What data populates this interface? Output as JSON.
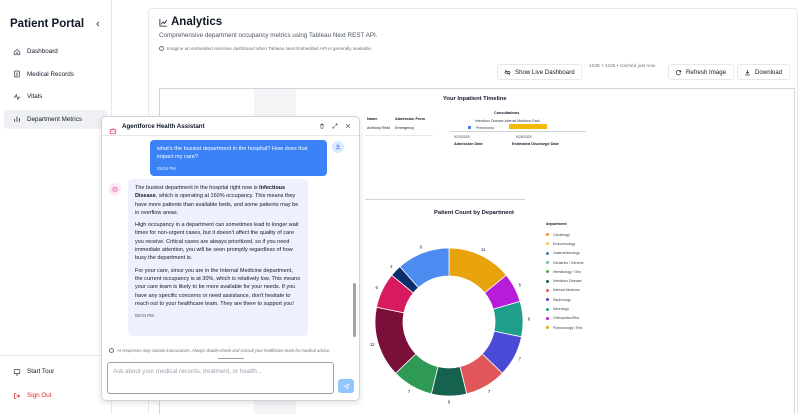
{
  "sidebar": {
    "title": "Patient Portal",
    "collapse_icon": "chevron-left-icon",
    "items": [
      {
        "label": "Dashboard",
        "icon": "home-icon"
      },
      {
        "label": "Medical Records",
        "icon": "document-icon"
      },
      {
        "label": "Vitals",
        "icon": "activity-icon"
      },
      {
        "label": "Department Metrics",
        "icon": "bar-chart-icon",
        "active": true
      }
    ],
    "footer": {
      "start_tour": "Start Tour",
      "sign_out": "Sign Out"
    }
  },
  "analytics": {
    "title": "Analytics",
    "subtitle": "Comprehensive department occupancy metrics using Tableau Next REST API.",
    "note": "Imagine an embedded real-time dashboard when Tableau Next Embedded API is generally available.",
    "show_live_label": "Show Live Dashboard",
    "image_meta": "1248 × 1105 • Cached just now",
    "refresh_label": "Refresh Image",
    "download_label": "Download"
  },
  "timeline": {
    "title": "Your Inpatient Timeline",
    "col_name": "Name",
    "col_admission_from": "Admission From",
    "name": "Anthony Reid",
    "admission_from": "Emergency",
    "consultations_label": "Consultations",
    "consult_dept": "Infectious Disease,Internal Medicine,Radi..",
    "event_label": "Pneumonia",
    "date_start": "9/23/2025",
    "date_end": "9/26/2025",
    "admission_date_label": "Admission Date",
    "discharge_label": "Estimated Discharge Date"
  },
  "chart_data": {
    "type": "pie",
    "title": "Patient Count by Department",
    "legend_title": "department",
    "categories": [
      "Cardiology",
      "Endocrinology",
      "Gastroenterology",
      "Geriatrics / General",
      "Hematology / Onc",
      "Infectious Disease",
      "Internal Medicine",
      "Nephrology",
      "Neurology",
      "Orthopedics/Rhe",
      "Pulmonology / Res"
    ],
    "colors": [
      "#f28e2b",
      "#edc948",
      "#4e79a7",
      "#76b7b2",
      "#59a14f",
      "#17614f",
      "#e15759",
      "#4b4ad6",
      "#1f9e89",
      "#b71cdb",
      "#e8a20c"
    ],
    "slices": [
      {
        "label": "11",
        "value": 11,
        "color": "#e8a20c"
      },
      {
        "label": "5",
        "value": 5,
        "color": "#b71cdb"
      },
      {
        "label": "6",
        "value": 6,
        "color": "#1f9e89"
      },
      {
        "label": "7",
        "value": 7,
        "color": "#4b4ad6"
      },
      {
        "label": "7",
        "value": 7,
        "color": "#e15759"
      },
      {
        "label": "6",
        "value": 6,
        "color": "#17614f"
      },
      {
        "label": "7",
        "value": 7,
        "color": "#2e9a55"
      },
      {
        "label": "12",
        "value": 12,
        "color": "#7a0f3a"
      },
      {
        "label": "6",
        "value": 6,
        "color": "#d81b60"
      },
      {
        "label": "2",
        "value": 2,
        "color": "#0d2d6b"
      },
      {
        "label": "9",
        "value": 9,
        "color": "#4c8bef"
      }
    ]
  },
  "chat": {
    "title": "Agentforce Health Assistant",
    "user_message": "what's the busiest department in the hospital? How does that impact my care?",
    "user_time": "05:04 PM",
    "bot_p1_pre": "The busiest department in the hospital right now is ",
    "bot_p1_bold": "Infectious Disease",
    "bot_p1_post": ", which is operating at 160% occupancy. This means they have more patients than available beds, and some patients may be in overflow areas.",
    "bot_p2": "High occupancy in a department can sometimes lead to longer wait times for non-urgent cases, but it doesn't affect the quality of care you receive. Critical cases are always prioritized, so if you need immediate attention, you will be seen promptly regardless of how busy the department is.",
    "bot_p3": "For your care, since you are in the Internal Medicine department, the current occupancy is at 30%, which is relatively low. This means your care team is likely to be more available for your needs. If you have any specific concerns or need assistance, don't hesitate to reach out to your healthcare team. They are there to support you!",
    "bot_time": "05:04 PM",
    "disclaimer": "AI responses may contain inaccuracies. Always double-check and consult your healthcare team for medical advice.",
    "input_placeholder": "Ask about your medical records, treatment, or health..."
  }
}
